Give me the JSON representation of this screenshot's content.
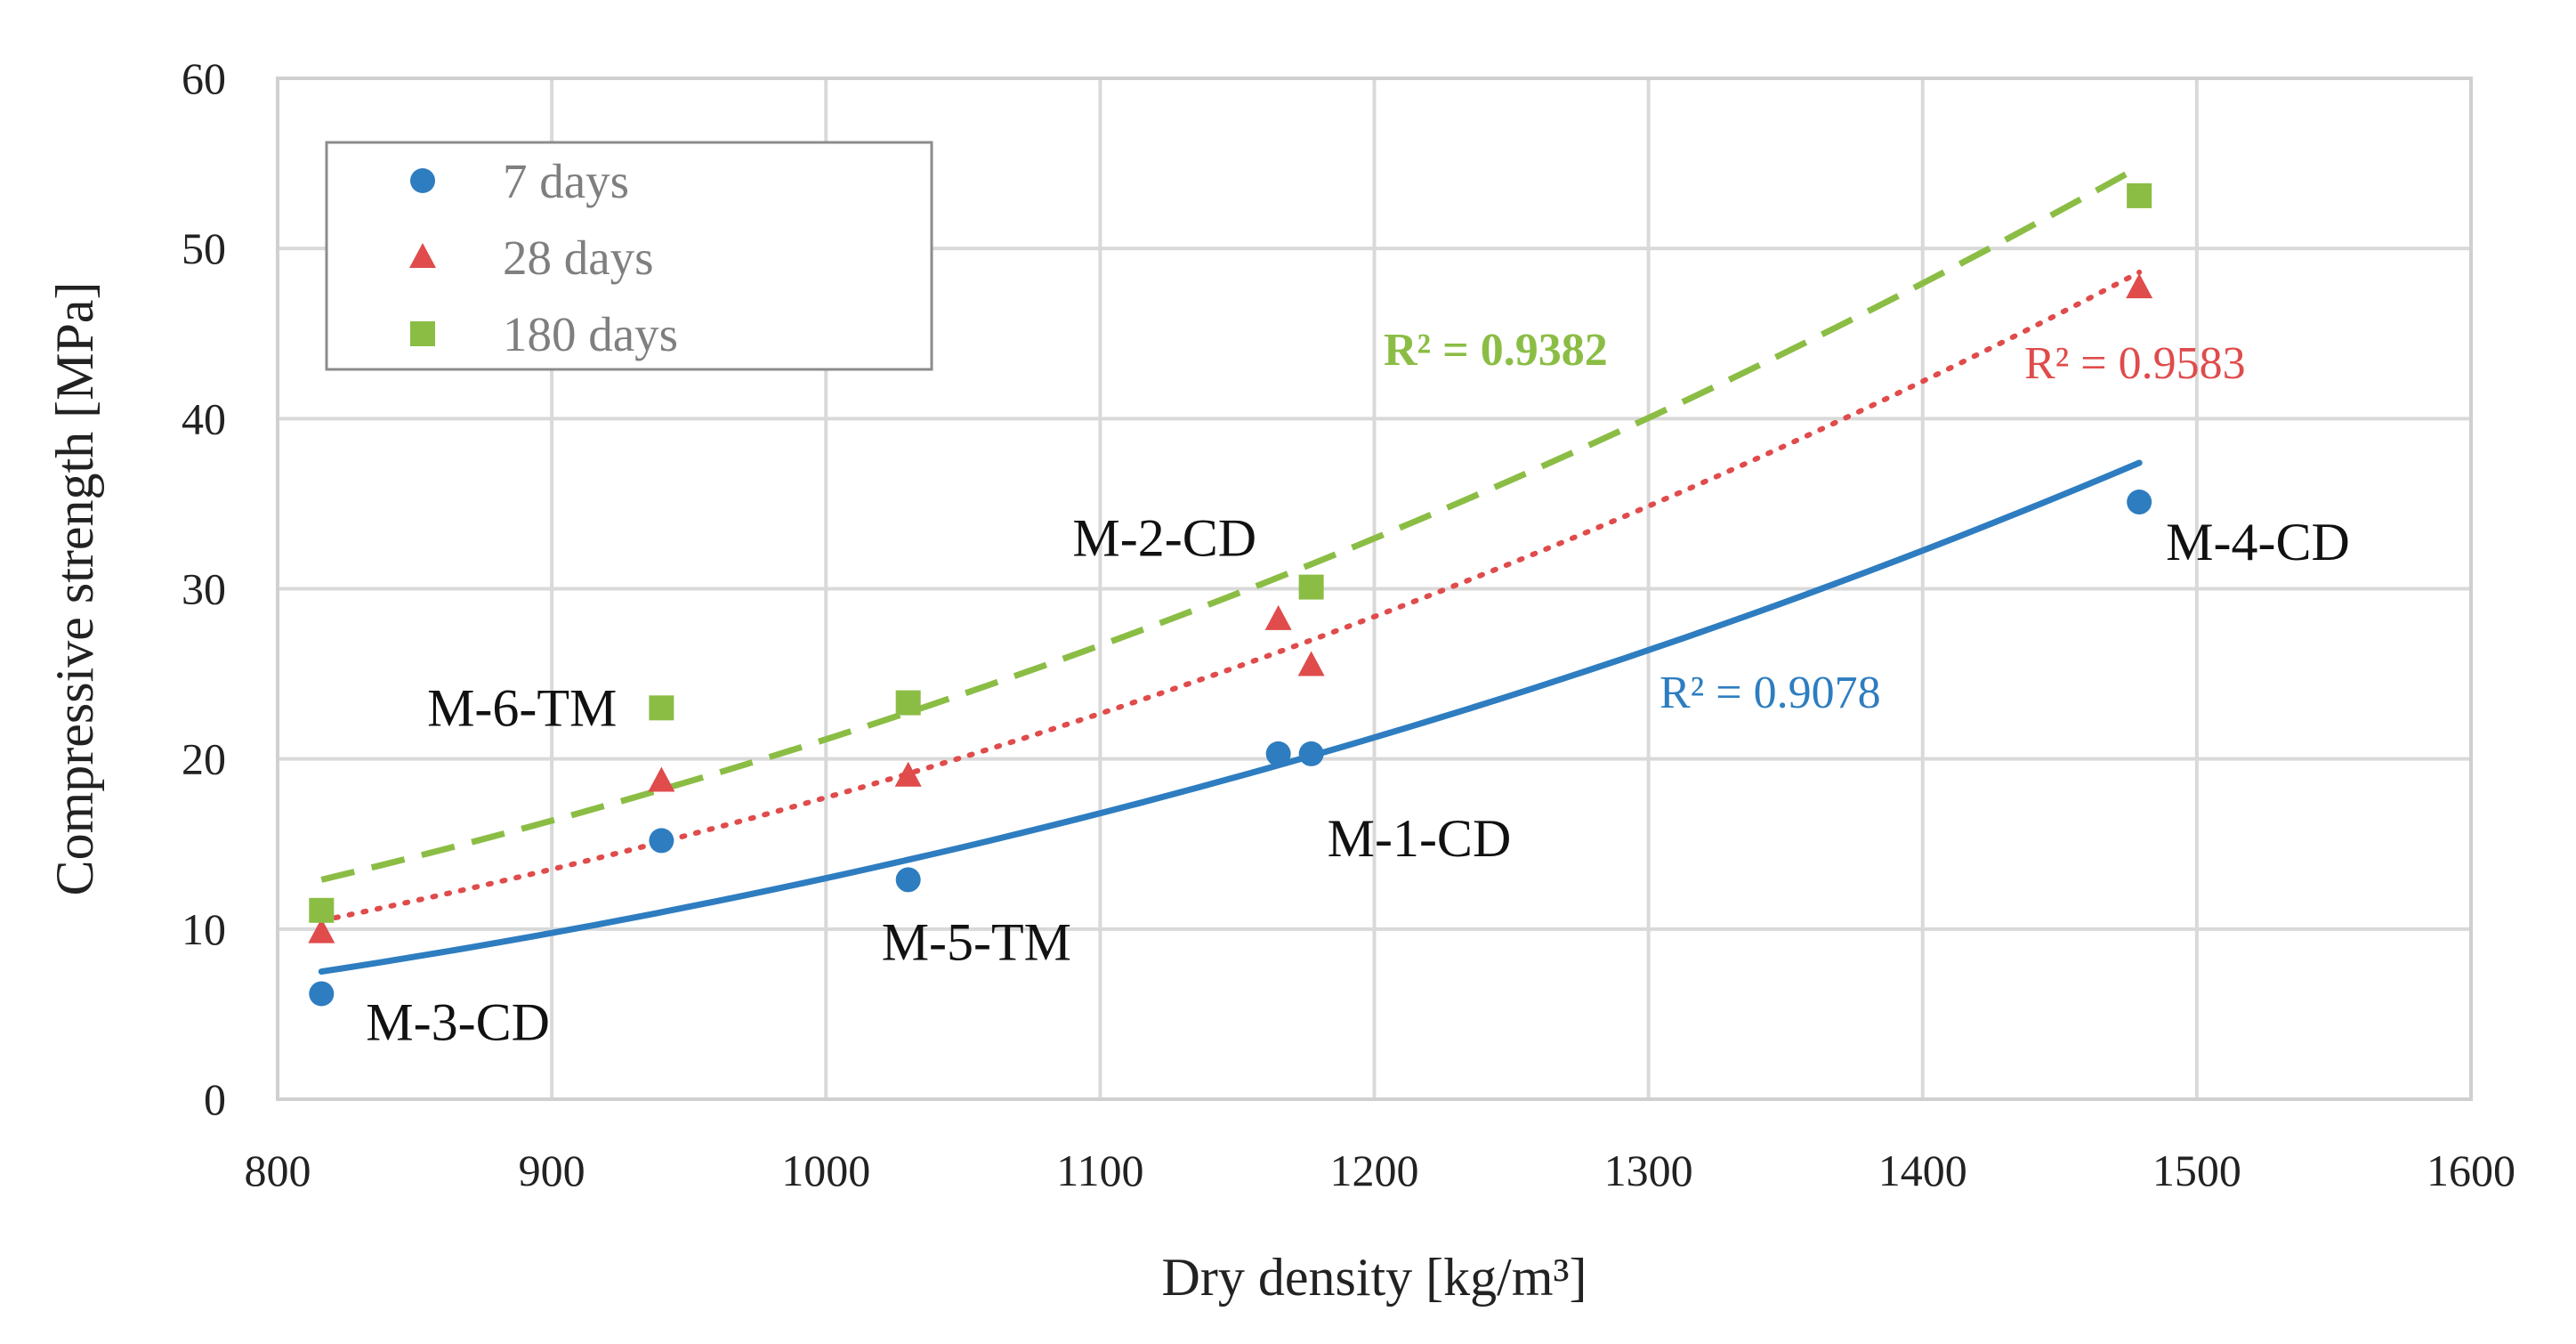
{
  "chart_data": {
    "type": "scatter",
    "title": "",
    "xlabel": "Dry density [kg/m³]",
    "ylabel": "Compressive strength [MPa]",
    "xlim": [
      800,
      1600
    ],
    "ylim": [
      0,
      60
    ],
    "xticks": [
      800,
      900,
      1000,
      1100,
      1200,
      1300,
      1400,
      1500,
      1600
    ],
    "yticks": [
      0,
      10,
      20,
      30,
      40,
      50,
      60
    ],
    "grid": true,
    "legend_position": "top-left",
    "series": [
      {
        "name": "7 days",
        "marker": "circle",
        "color": "#2e7dc0",
        "x": [
          816,
          940,
          1030,
          1165,
          1177,
          1479
        ],
        "y": [
          6.2,
          15.2,
          12.9,
          20.3,
          20.3,
          35.1
        ],
        "trendline": {
          "style": "solid",
          "r2": "R² = 0.9078",
          "x_range": [
            816,
            1479
          ],
          "y_range": [
            7.5,
            37.4
          ]
        }
      },
      {
        "name": "28 days",
        "marker": "triangle",
        "color": "#e04b4b",
        "x": [
          816,
          940,
          1030,
          1165,
          1177,
          1479
        ],
        "y": [
          9.8,
          18.7,
          19.0,
          28.2,
          25.5,
          47.7
        ],
        "trendline": {
          "style": "dotted",
          "r2": "R² = 0.9583",
          "x_range": [
            816,
            1479
          ],
          "y_range": [
            10.5,
            48.6
          ]
        }
      },
      {
        "name": "180 days",
        "marker": "square",
        "color": "#8bbd45",
        "x": [
          816,
          940,
          1030,
          1177,
          1479
        ],
        "y": [
          11.1,
          23.0,
          23.3,
          30.1,
          53.1
        ],
        "trendline": {
          "style": "dashed",
          "r2": "R² = 0.9382",
          "x_range": [
            816,
            1479
          ],
          "y_range": [
            12.9,
            54.8
          ]
        }
      }
    ],
    "annotations": [
      {
        "text": "M-3-CD",
        "x": 816,
        "y": 6.2
      },
      {
        "text": "M-6-TM",
        "x": 940,
        "y": 23.0
      },
      {
        "text": "M-5-TM",
        "x": 1030,
        "y": 12.9
      },
      {
        "text": "M-2-CD",
        "x": 1170,
        "y": 30.1
      },
      {
        "text": "M-1-CD",
        "x": 1177,
        "y": 20.3
      },
      {
        "text": "M-4-CD",
        "x": 1479,
        "y": 35.1
      }
    ]
  }
}
